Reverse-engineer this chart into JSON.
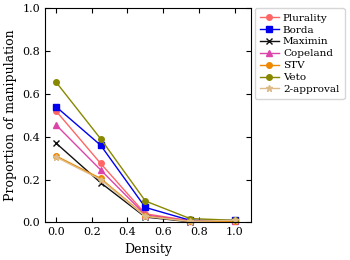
{
  "x": [
    0,
    0.25,
    0.5,
    0.75,
    1.0
  ],
  "series_order": [
    "Plurality",
    "Borda",
    "Maximin",
    "Copeland",
    "STV",
    "Veto",
    "2-approval"
  ],
  "series": {
    "Plurality": {
      "y": [
        0.52,
        0.275,
        0.04,
        0.008,
        0.005
      ],
      "color": "#ff6666",
      "marker": "o",
      "markersize": 4,
      "linewidth": 1.0
    },
    "Borda": {
      "y": [
        0.54,
        0.36,
        0.07,
        0.01,
        0.01
      ],
      "color": "#0000ee",
      "marker": "s",
      "markersize": 4,
      "linewidth": 1.0
    },
    "Maximin": {
      "y": [
        0.37,
        0.185,
        0.025,
        0.003,
        0.005
      ],
      "color": "#111111",
      "marker": "x",
      "markersize": 5,
      "linewidth": 1.0
    },
    "Copeland": {
      "y": [
        0.455,
        0.245,
        0.035,
        0.007,
        0.005
      ],
      "color": "#dd44aa",
      "marker": "^",
      "markersize": 4,
      "linewidth": 1.0
    },
    "STV": {
      "y": [
        0.31,
        0.205,
        0.03,
        0.005,
        0.005
      ],
      "color": "#ee8800",
      "marker": "o",
      "markersize": 4,
      "linewidth": 1.0
    },
    "Veto": {
      "y": [
        0.655,
        0.39,
        0.1,
        0.018,
        0.01
      ],
      "color": "#888800",
      "marker": "o",
      "markersize": 4,
      "linewidth": 1.0
    },
    "2-approval": {
      "y": [
        0.305,
        0.2,
        0.028,
        0.005,
        0.01
      ],
      "color": "#ddbb88",
      "marker": "*",
      "markersize": 5,
      "linewidth": 1.0
    }
  },
  "xlabel": "Density",
  "ylabel": "Proportion of manipulation",
  "xlim": [
    -0.06,
    1.09
  ],
  "ylim": [
    0,
    1.0
  ],
  "yticks": [
    0,
    0.2,
    0.4,
    0.6,
    0.8,
    1.0
  ],
  "xticks": [
    0,
    0.2,
    0.4,
    0.6,
    0.8,
    1.0
  ],
  "legend_fontsize": 7.5,
  "axis_fontsize": 9,
  "tick_fontsize": 8
}
